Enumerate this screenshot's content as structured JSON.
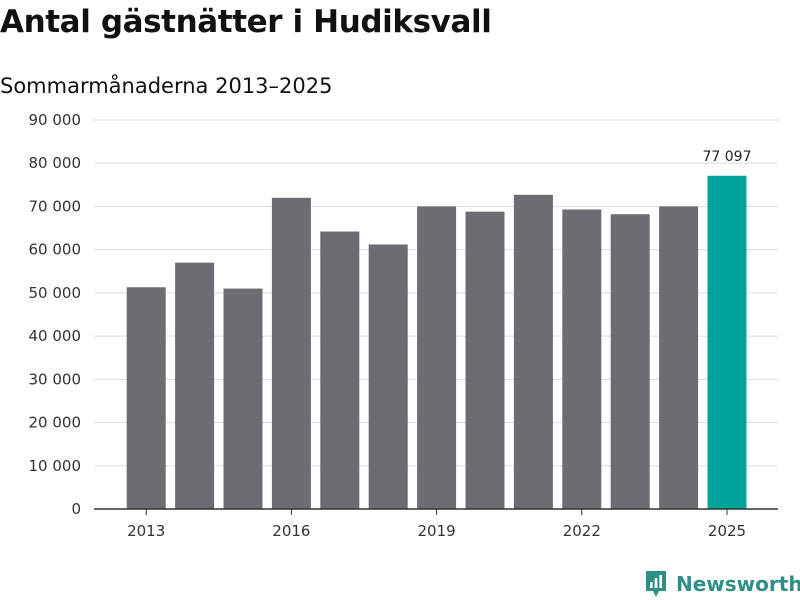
{
  "chart_data": {
    "type": "bar",
    "title": "Antal gästnätter i Hudiksvall",
    "subtitle": "Sommarmånaderna 2013–2025",
    "categories": [
      "2013",
      "2014",
      "2015",
      "2016",
      "2017",
      "2018",
      "2019",
      "2020",
      "2021",
      "2022",
      "2023",
      "2024",
      "2025"
    ],
    "values": [
      51300,
      57000,
      51000,
      72000,
      64200,
      61200,
      70000,
      68800,
      72700,
      69300,
      68200,
      70000,
      77097
    ],
    "x_tick_labels": [
      "2013",
      "2016",
      "2019",
      "2022",
      "2025"
    ],
    "y_tick_labels": [
      "0",
      "10 000",
      "20 000",
      "30 000",
      "40 000",
      "50 000",
      "60 000",
      "70 000",
      "80 000",
      "90 000"
    ],
    "ylim": [
      0,
      90000
    ],
    "grid": true,
    "bar_color": "#6d6c72",
    "highlight_color": "#00a499",
    "highlight_category": "2025",
    "data_labels": [
      {
        "category": "2025",
        "text": "77 097"
      }
    ]
  },
  "branding": {
    "logo_text": "Newsworthy",
    "logo_color": "#2f8f86",
    "logo_icon": "newsworthy-logo-icon"
  }
}
